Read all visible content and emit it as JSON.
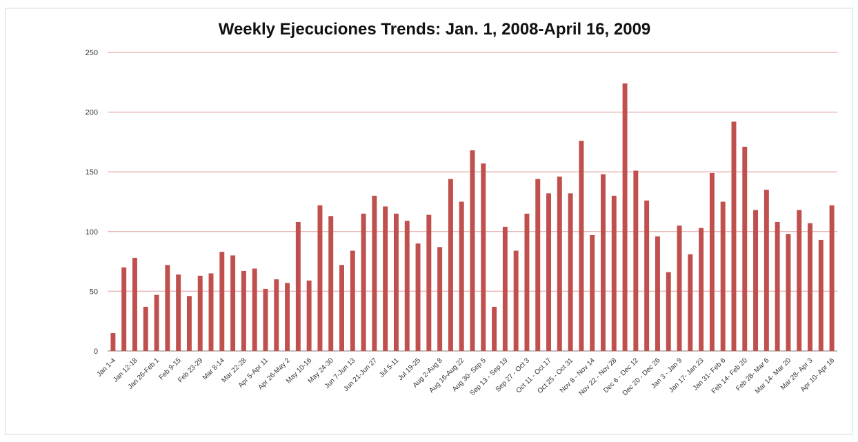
{
  "chart_data": {
    "type": "bar",
    "title": "Weekly Ejecuciones Trends: Jan. 1, 2008-April 16, 2009",
    "categories": [
      "Jan 1-4",
      null,
      "Jan 12-18",
      null,
      "Jan 26-Feb 1",
      null,
      "Feb 9-15",
      null,
      "Feb 23-29",
      null,
      "Mar 8-14",
      null,
      "Mar 22-28",
      null,
      "Apr 5-Apr 11",
      null,
      "Apr 26-May 2",
      null,
      "May 10-16",
      null,
      "May 24-30",
      null,
      "Jun 7-Jun 13",
      null,
      "Jun 21-Jun 27",
      null,
      "Jul 5-11",
      null,
      "Jul 19-25",
      null,
      "Aug 2-Aug 8",
      null,
      "Aug 16-Aug 22",
      null,
      "Aug 30- Sep 5",
      null,
      "Sep 13 - Sep 19",
      null,
      "Sep 27 - Oct 3",
      null,
      "Oct 11 - Oct 17",
      null,
      "Oct 25 - Oct 31",
      null,
      "Nov 8 - Nov 14",
      null,
      "Nov 22 - Nov 28",
      null,
      "Dec 6 - Dec 12",
      null,
      "Dec 20 - Dec 26",
      null,
      "Jan 3 - Jan 9",
      null,
      "Jan 17- Jan 23",
      null,
      "Jan 31- Feb 6",
      null,
      "Feb 14- Feb 20",
      null,
      "Feb 28- Mar 6",
      null,
      "Mar 14- Mar 20",
      null,
      "Mar 28- Apr 3",
      null,
      "Apr 10- Apr 16"
    ],
    "values": [
      15,
      70,
      78,
      37,
      47,
      72,
      64,
      46,
      63,
      65,
      83,
      80,
      67,
      69,
      52,
      60,
      57,
      108,
      59,
      122,
      113,
      72,
      84,
      115,
      130,
      121,
      115,
      109,
      90,
      114,
      87,
      144,
      125,
      168,
      157,
      37,
      104,
      84,
      115,
      144,
      132,
      146,
      132,
      176,
      97,
      148,
      130,
      224,
      151,
      126,
      96,
      66,
      105,
      81,
      103,
      149,
      125,
      192,
      171,
      118,
      135,
      108,
      98,
      118,
      107,
      93,
      122
    ],
    "color": "#c0504d",
    "ylim": [
      0,
      250
    ],
    "yticks": [
      0,
      50,
      100,
      150,
      200,
      250
    ],
    "grid": true
  }
}
